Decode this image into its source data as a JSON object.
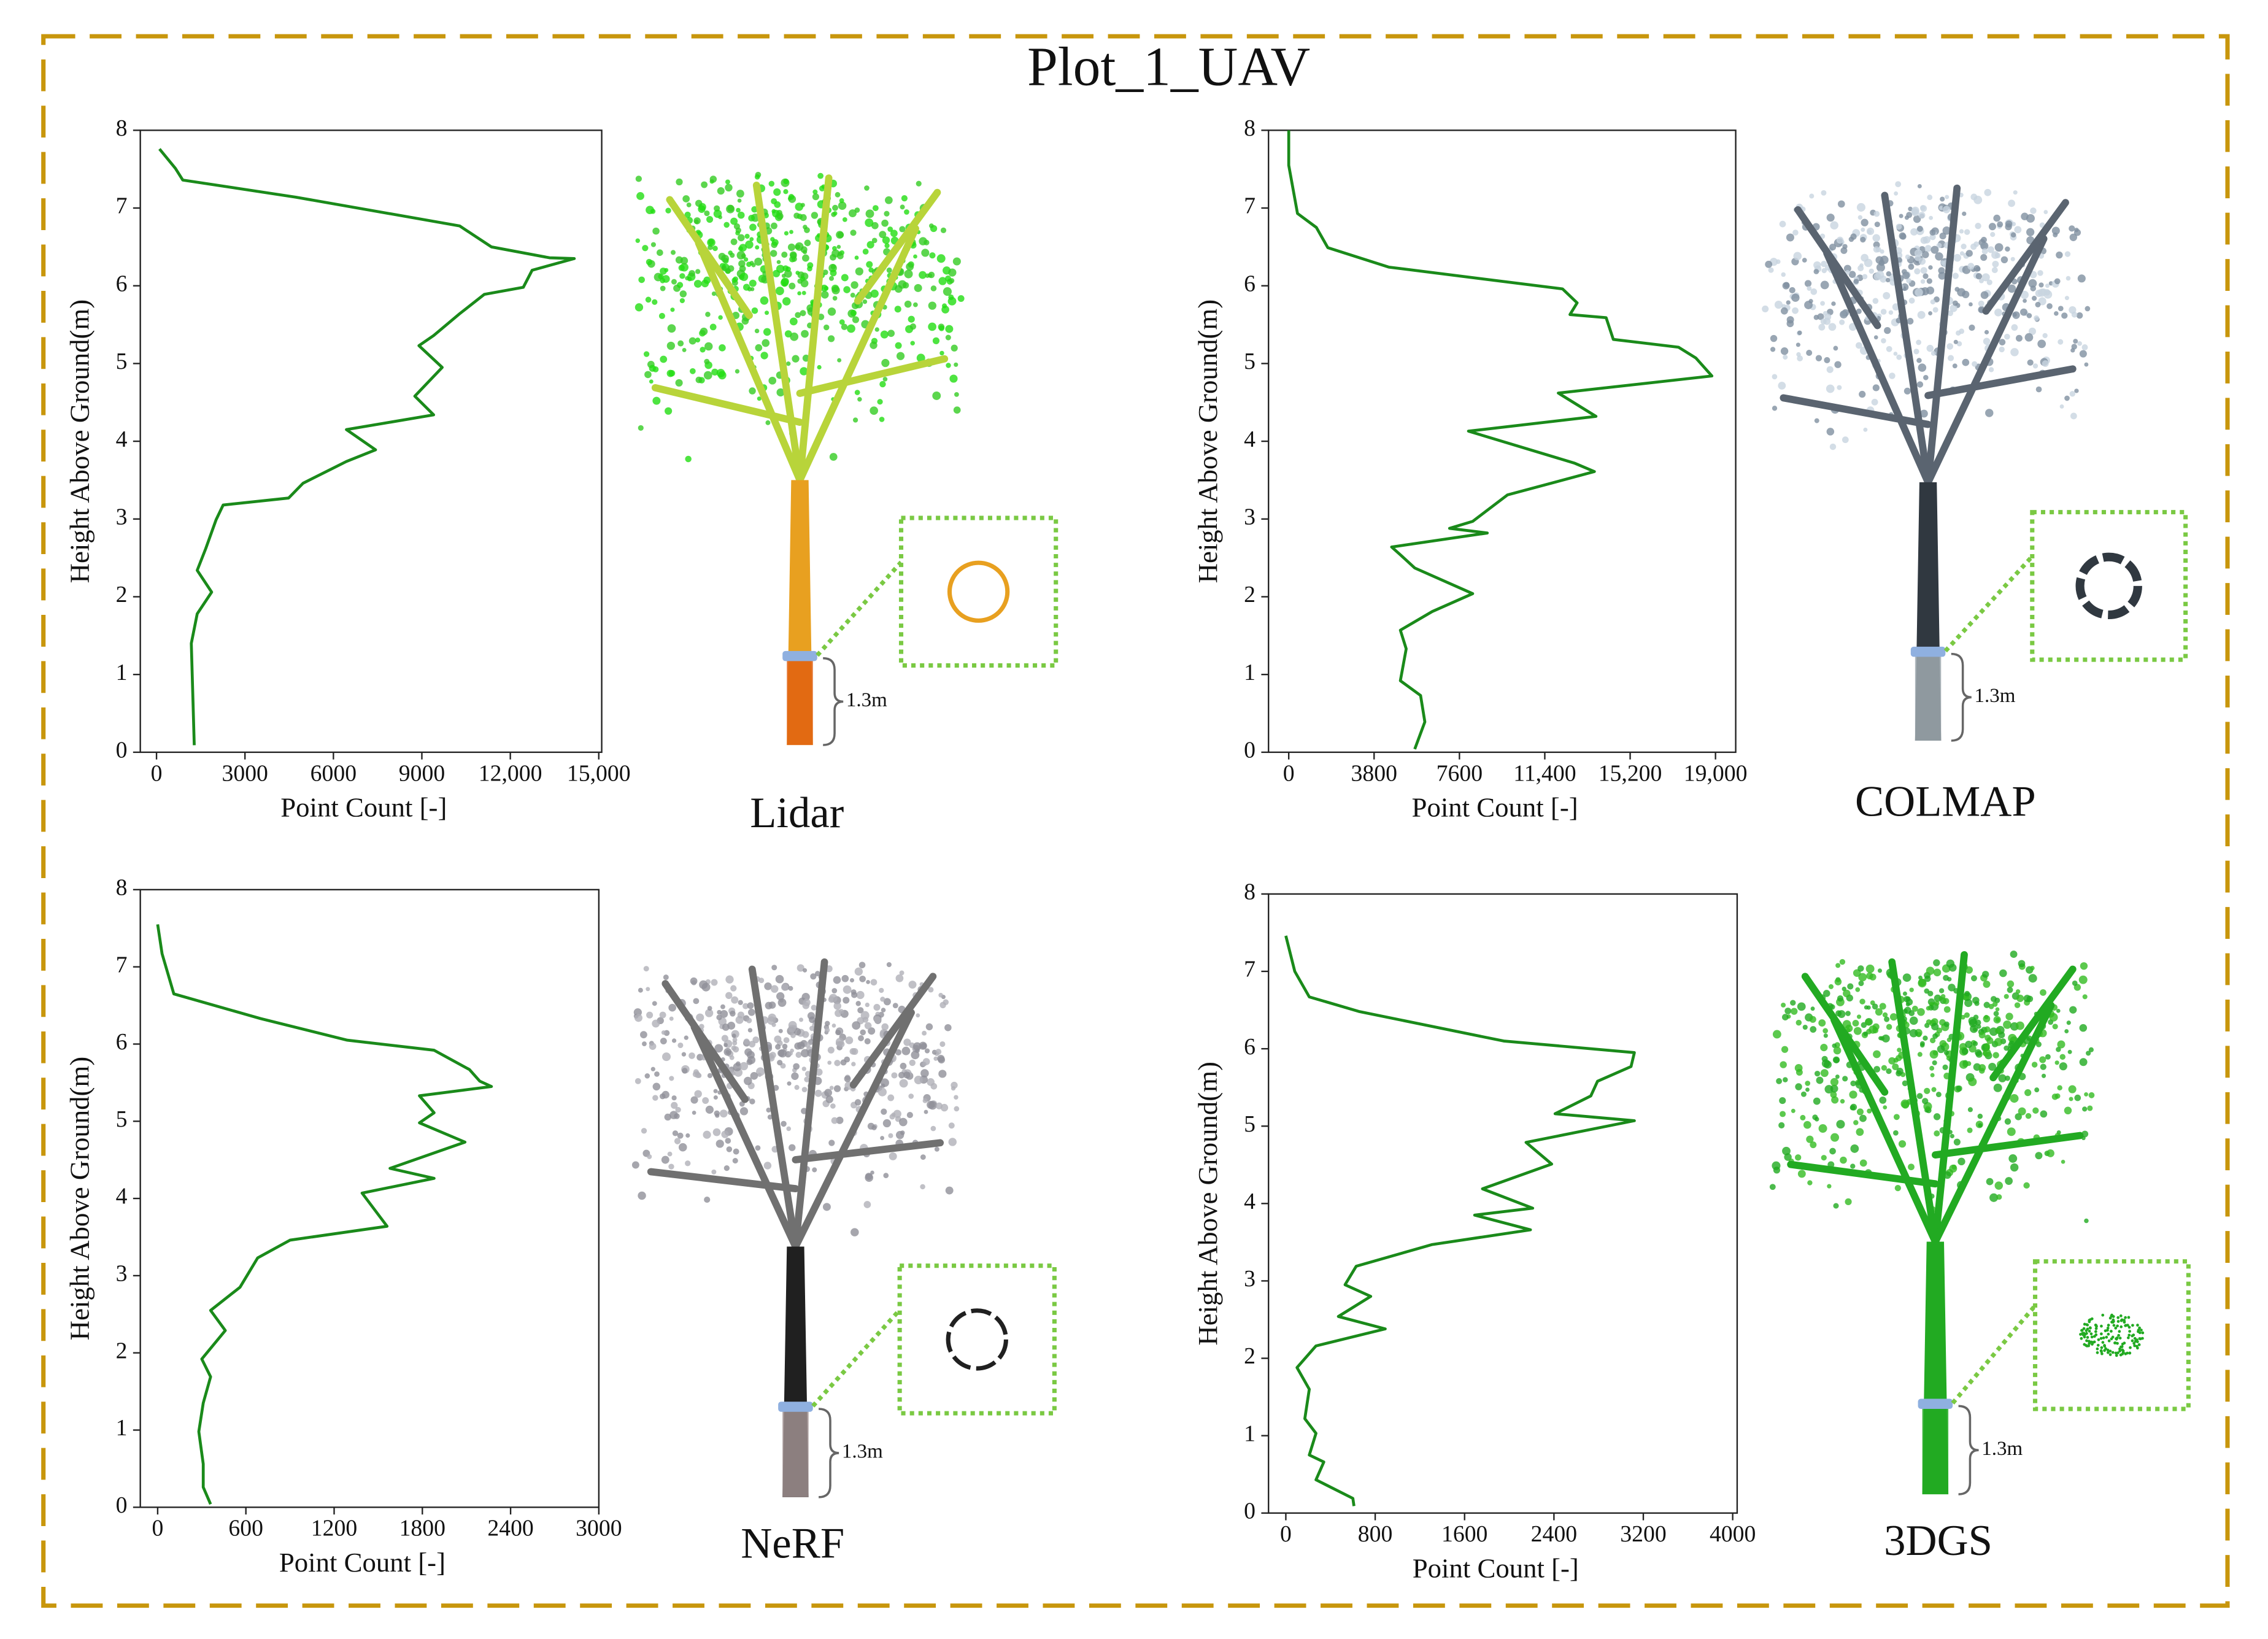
{
  "title": "Plot_1_UAV",
  "chart_data": [
    {
      "type": "line",
      "label": "Lidar",
      "annotation": "1.3m",
      "xlabel": "Point Count [-]",
      "ylabel": "Height Above Ground(m)",
      "color": "#1a8a1a",
      "xlim": [
        -550,
        15100
      ],
      "ylim": [
        0,
        8
      ],
      "xticks": [
        0,
        3000,
        6000,
        {
          "value": 9000,
          "label": "9000"
        },
        {
          "value": 12000,
          "label": "12,000"
        },
        {
          "value": 15000,
          "label": "15,000"
        }
      ],
      "yticks": [
        0,
        1,
        2,
        3,
        4,
        5,
        6,
        7,
        8
      ],
      "y": [
        7.76,
        7.51,
        7.36,
        7.14,
        6.77,
        6.5,
        6.36,
        6.35,
        6.2,
        5.98,
        5.89,
        5.64,
        5.36,
        5.23,
        4.95,
        4.58,
        4.34,
        4.15,
        3.89,
        3.74,
        3.46,
        3.27,
        3.18,
        2.99,
        2.62,
        2.34,
        2.06,
        1.78,
        1.4,
        0.75,
        0.09
      ],
      "values": [
        100,
        640,
        890,
        4720,
        10280,
        11360,
        13330,
        14170,
        12740,
        12440,
        11120,
        10280,
        9400,
        8900,
        9690,
        8760,
        9400,
        6440,
        7430,
        6440,
        4970,
        4480,
        2260,
        2020,
        1670,
        1380,
        1870,
        1380,
        1180,
        1230,
        1280
      ]
    },
    {
      "type": "line",
      "label": "COLMAP",
      "annotation": "1.3m",
      "xlabel": "Point Count [-]",
      "ylabel": "Height Above Ground(m)",
      "color": "#1a8a1a",
      "xlim": [
        -900,
        19900
      ],
      "ylim": [
        0,
        8
      ],
      "xticks": [
        0,
        3800,
        7600,
        {
          "value": 11400,
          "label": "11,400"
        },
        {
          "value": 15200,
          "label": "15,200"
        },
        {
          "value": 19000,
          "label": "19,000"
        }
      ],
      "yticks": [
        0,
        1,
        2,
        3,
        4,
        5,
        6,
        7,
        8
      ],
      "y": [
        8.0,
        7.55,
        6.93,
        6.75,
        6.49,
        6.24,
        5.96,
        5.78,
        5.63,
        5.59,
        5.31,
        5.21,
        5.07,
        4.84,
        4.62,
        4.32,
        4.13,
        3.72,
        3.61,
        3.31,
        2.97,
        2.88,
        2.82,
        2.64,
        2.54,
        2.37,
        2.04,
        1.81,
        1.57,
        1.33,
        0.92,
        0.73,
        0.39,
        0.04
      ],
      "values": [
        0,
        0,
        390,
        1230,
        1740,
        4450,
        12190,
        12840,
        12520,
        14130,
        14450,
        17350,
        18130,
        18840,
        12000,
        13680,
        8000,
        12710,
        13610,
        9740,
        8190,
        7160,
        8840,
        4580,
        4970,
        5610,
        8190,
        6390,
        4970,
        5230,
        4970,
        5870,
        6060,
        5610
      ]
    },
    {
      "type": "line",
      "label": "NeRF",
      "annotation": "1.3m",
      "xlabel": "Point Count [-]",
      "ylabel": "Height Above Ground(m)",
      "color": "#1a8a1a",
      "xlim": [
        -118,
        3000
      ],
      "ylim": [
        0,
        8
      ],
      "xticks": [
        0,
        600,
        1200,
        1800,
        2400,
        3000
      ],
      "yticks": [
        0,
        1,
        2,
        3,
        4,
        5,
        6,
        7,
        8
      ],
      "y": [
        7.55,
        7.17,
        6.65,
        6.33,
        6.05,
        5.92,
        5.67,
        5.52,
        5.45,
        5.33,
        5.11,
        4.98,
        4.73,
        4.39,
        4.26,
        4.07,
        3.64,
        3.46,
        3.23,
        2.85,
        2.55,
        2.29,
        1.92,
        1.69,
        1.35,
        0.98,
        0.56,
        0.26,
        0.04
      ],
      "values": [
        0,
        30,
        110,
        700,
        1290,
        1880,
        2120,
        2190,
        2270,
        1780,
        1880,
        1780,
        2090,
        1580,
        1880,
        1390,
        1560,
        900,
        680,
        560,
        360,
        460,
        300,
        360,
        310,
        280,
        310,
        310,
        360
      ]
    },
    {
      "type": "line",
      "label": "3DGS",
      "annotation": "1.3m",
      "xlabel": "Point Count [-]",
      "ylabel": "Height Above Ground(m)",
      "color": "#1a8a1a",
      "xlim": [
        -155,
        4040
      ],
      "ylim": [
        0,
        8
      ],
      "xticks": [
        0,
        800,
        1600,
        2400,
        3200,
        4000
      ],
      "yticks": [
        0,
        1,
        2,
        3,
        4,
        5,
        6,
        7,
        8
      ],
      "y": [
        7.46,
        7.0,
        6.67,
        6.48,
        6.1,
        5.95,
        5.77,
        5.58,
        5.39,
        5.16,
        5.07,
        4.79,
        4.51,
        4.19,
        3.94,
        3.85,
        3.66,
        3.47,
        3.19,
        2.95,
        2.8,
        2.54,
        2.38,
        2.16,
        1.88,
        1.6,
        1.22,
        1.03,
        0.75,
        0.66,
        0.43,
        0.19,
        0.09
      ],
      "values": [
        0,
        80,
        210,
        660,
        1950,
        3120,
        3090,
        2790,
        2730,
        2410,
        3120,
        2150,
        2380,
        1760,
        2210,
        1690,
        2190,
        1310,
        630,
        530,
        760,
        470,
        890,
        270,
        100,
        210,
        170,
        270,
        210,
        340,
        270,
        600,
        610
      ]
    }
  ]
}
